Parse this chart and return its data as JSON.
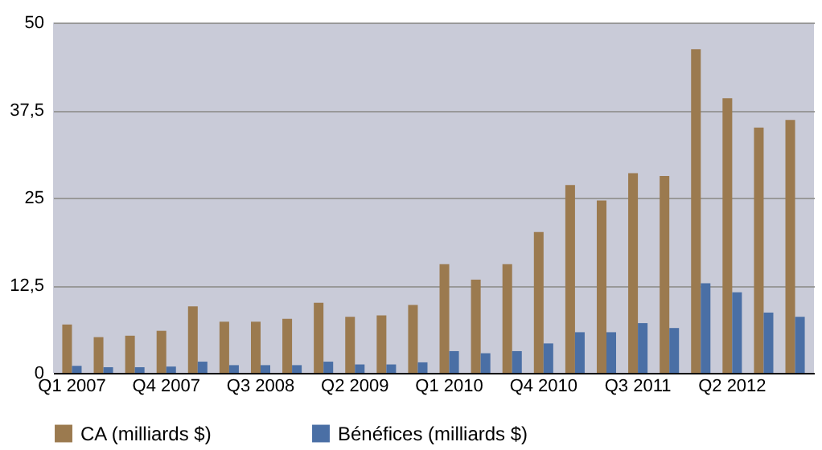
{
  "chart_data": {
    "type": "bar",
    "categories": [
      "Q1 2007",
      null,
      null,
      "Q4 2007",
      null,
      null,
      "Q3 2008",
      null,
      null,
      "Q2 2009",
      null,
      null,
      "Q1 2010",
      null,
      null,
      "Q4 2010",
      null,
      null,
      "Q3 2011",
      null,
      null,
      "Q2 2012",
      null,
      null
    ],
    "series": [
      {
        "name": "CA (milliards $)",
        "color": "#9b7a4f",
        "values": [
          6.9,
          5.1,
          5.3,
          6.0,
          9.5,
          7.3,
          7.3,
          7.7,
          10.0,
          8.0,
          8.2,
          9.7,
          15.5,
          13.3,
          15.5,
          20.1,
          26.8,
          24.6,
          28.5,
          28.1,
          46.2,
          39.2,
          35.0,
          36.1
        ]
      },
      {
        "name": "Bénéfices (milliards $)",
        "color": "#4a6fa5",
        "values": [
          1.0,
          0.8,
          0.8,
          0.9,
          1.6,
          1.1,
          1.1,
          1.1,
          1.6,
          1.2,
          1.2,
          1.5,
          3.1,
          2.8,
          3.1,
          4.2,
          5.8,
          5.8,
          7.1,
          6.4,
          12.8,
          11.5,
          8.6,
          8.0
        ]
      }
    ],
    "ylim": [
      0,
      50
    ],
    "yticks": [
      0,
      {
        "value": 12.5,
        "label": "12,5"
      },
      25,
      {
        "value": 37.5,
        "label": "37,5"
      },
      50
    ],
    "grid": "y",
    "legend": "bottom"
  }
}
